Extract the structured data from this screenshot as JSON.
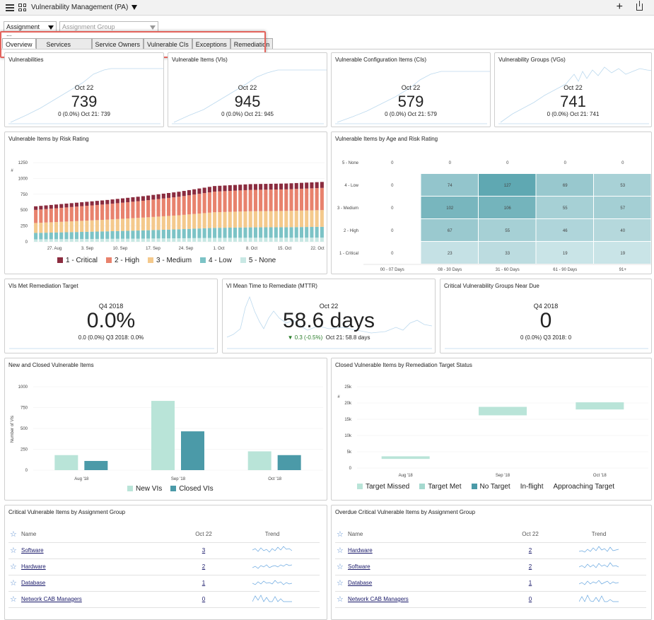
{
  "app": {
    "title": "Vulnerability Management (PA)"
  },
  "filters": {
    "assignment": "Assignment ...",
    "assignment_group_placeholder": "Assignment Group"
  },
  "tabs": [
    "Overview",
    "Services",
    "Service Owners",
    "Vulnerable CIs",
    "Exceptions",
    "Remediation"
  ],
  "kpis": [
    {
      "title": "Vulnerabilities",
      "date": "Oct 22",
      "value": "739",
      "sub": "0 (0.0%)  Oct 21: 739"
    },
    {
      "title": "Vulnerable Items (VIs)",
      "date": "Oct 22",
      "value": "945",
      "sub": "0 (0.0%)  Oct 21: 945"
    },
    {
      "title": "Vulnerable Configuration Items (CIs)",
      "date": "Oct 22",
      "value": "579",
      "sub": "0 (0.0%)  Oct 21: 579"
    },
    {
      "title": "Vulnerability Groups (VGs)",
      "date": "Oct 22",
      "value": "741",
      "sub": "0 (0.0%)  Oct 21: 741"
    }
  ],
  "kpis2": [
    {
      "title": "VIs Met Remediation Target",
      "date": "Q4 2018",
      "value": "0.0%",
      "sub": "0.0 (0.0%)  Q3 2018: 0.0%"
    },
    {
      "title": "VI Mean Time to Remediate (MTTR)",
      "date": "Oct 22",
      "value": "58.6 days",
      "delta": "▼ 0.3 (-0.5%)",
      "sub": "Oct 21: 58.8 days"
    },
    {
      "title": "Critical Vulnerability Groups Near Due",
      "date": "Q4 2018",
      "value": "0",
      "sub": "0 (0.0%)  Q3 2018: 0"
    }
  ],
  "risk_chart": {
    "title": "Vulnerable Items by Risk Rating",
    "ylabel": "#",
    "yticks": [
      "1250",
      "1000",
      "750",
      "500",
      "250",
      "0"
    ],
    "xticks": [
      "27. Aug",
      "3. Sep",
      "10. Sep",
      "17. Sep",
      "24. Sep",
      "1. Oct",
      "8. Oct",
      "15. Oct",
      "22. Oct"
    ],
    "legend": [
      "1 - Critical",
      "2 - High",
      "3 - Medium",
      "4 - Low",
      "5 - None"
    ],
    "colors": [
      "#8b2c3f",
      "#e8826d",
      "#f4c98c",
      "#7cc3c6",
      "#c8e8e4"
    ]
  },
  "heat_chart": {
    "title": "Vulnerable Items by Age and Risk Rating",
    "rows": [
      "5 - None",
      "4 - Low",
      "3 - Medium",
      "2 - High",
      "1 - Critical"
    ],
    "cols": [
      "00 - 07 Days",
      "08 - 30 Days",
      "31 - 60 Days",
      "61 - 90 Days",
      "91+"
    ],
    "values": [
      [
        0,
        0,
        0,
        0,
        0
      ],
      [
        0,
        74,
        127,
        69,
        53
      ],
      [
        0,
        102,
        106,
        55,
        57
      ],
      [
        0,
        67,
        55,
        46,
        40
      ],
      [
        0,
        23,
        33,
        19,
        19
      ]
    ]
  },
  "new_closed": {
    "title": "New and Closed Vulnerable Items",
    "ylabel": "Number of VIs",
    "yticks": [
      "1000",
      "750",
      "500",
      "250",
      "0"
    ],
    "categories": [
      "Aug '18",
      "Sep '18",
      "Oct '18"
    ],
    "series": [
      {
        "name": "New VIs",
        "values": [
          180,
          830,
          225
        ],
        "color": "#b9e4d8"
      },
      {
        "name": "Closed VIs",
        "values": [
          110,
          465,
          180
        ],
        "color": "#4b9aa8"
      }
    ],
    "ylim": [
      0,
      1000
    ]
  },
  "closed_status": {
    "title": "Closed Vulnerable Items by Remediation Target Status",
    "ylabel": "#",
    "yticks": [
      "25k",
      "20k",
      "15k",
      "10k",
      "5k",
      "0"
    ],
    "categories": [
      "Aug '18",
      "Sep '18",
      "Oct '18"
    ],
    "ranges": [
      [
        2800,
        3600
      ],
      [
        16200,
        18800
      ],
      [
        18000,
        20200
      ]
    ],
    "legend": [
      "Target Missed",
      "Target Met",
      "No Target",
      "In-flight",
      "Approaching Target"
    ],
    "legend_colors": [
      "#b9e4d8",
      "#a5d9cf",
      "#4b9aa8",
      "",
      ""
    ]
  },
  "crit_by_group": {
    "title": "Critical Vulnerable Items by Assignment Group",
    "headers": [
      "Name",
      "Oct 22",
      "Trend"
    ],
    "rows": [
      {
        "name": "Software",
        "value": "3"
      },
      {
        "name": "Hardware",
        "value": "2"
      },
      {
        "name": "Database",
        "value": "1"
      },
      {
        "name": "Network CAB Managers",
        "value": "0"
      }
    ]
  },
  "overdue_by_group": {
    "title": "Overdue Critical Vulnerable Items by Assignment Group",
    "headers": [
      "Name",
      "Oct 22",
      "Trend"
    ],
    "rows": [
      {
        "name": "Hardware",
        "value": "2"
      },
      {
        "name": "Software",
        "value": "2"
      },
      {
        "name": "Database",
        "value": "1"
      },
      {
        "name": "Network CAB Managers",
        "value": "0"
      }
    ]
  },
  "chart_data": [
    {
      "type": "bar",
      "title": "Vulnerable Items by Risk Rating",
      "ylabel": "#",
      "ylim": [
        0,
        1250
      ],
      "series": [
        {
          "name": "1 - Critical"
        },
        {
          "name": "2 - High"
        },
        {
          "name": "3 - Medium"
        },
        {
          "name": "4 - Low"
        },
        {
          "name": "5 - None"
        }
      ],
      "categories": [
        "27. Aug",
        "3. Sep",
        "10. Sep",
        "17. Sep",
        "24. Sep",
        "1. Oct",
        "8. Oct",
        "15. Oct",
        "22. Oct"
      ],
      "totals": [
        560,
        610,
        660,
        720,
        790,
        880,
        910,
        920,
        945
      ]
    },
    {
      "type": "heatmap",
      "title": "Vulnerable Items by Age and Risk Rating",
      "categories": [
        "00 - 07 Days",
        "08 - 30 Days",
        "31 - 60 Days",
        "61 - 90 Days",
        "91+"
      ]
    },
    {
      "type": "bar",
      "title": "New and Closed Vulnerable Items",
      "ylabel": "Number of VIs",
      "categories": [
        "Aug '18",
        "Sep '18",
        "Oct '18"
      ],
      "series": [
        {
          "name": "New VIs",
          "values": [
            180,
            830,
            225
          ]
        },
        {
          "name": "Closed VIs",
          "values": [
            110,
            465,
            180
          ]
        }
      ],
      "ylim": [
        0,
        1000
      ]
    }
  ]
}
